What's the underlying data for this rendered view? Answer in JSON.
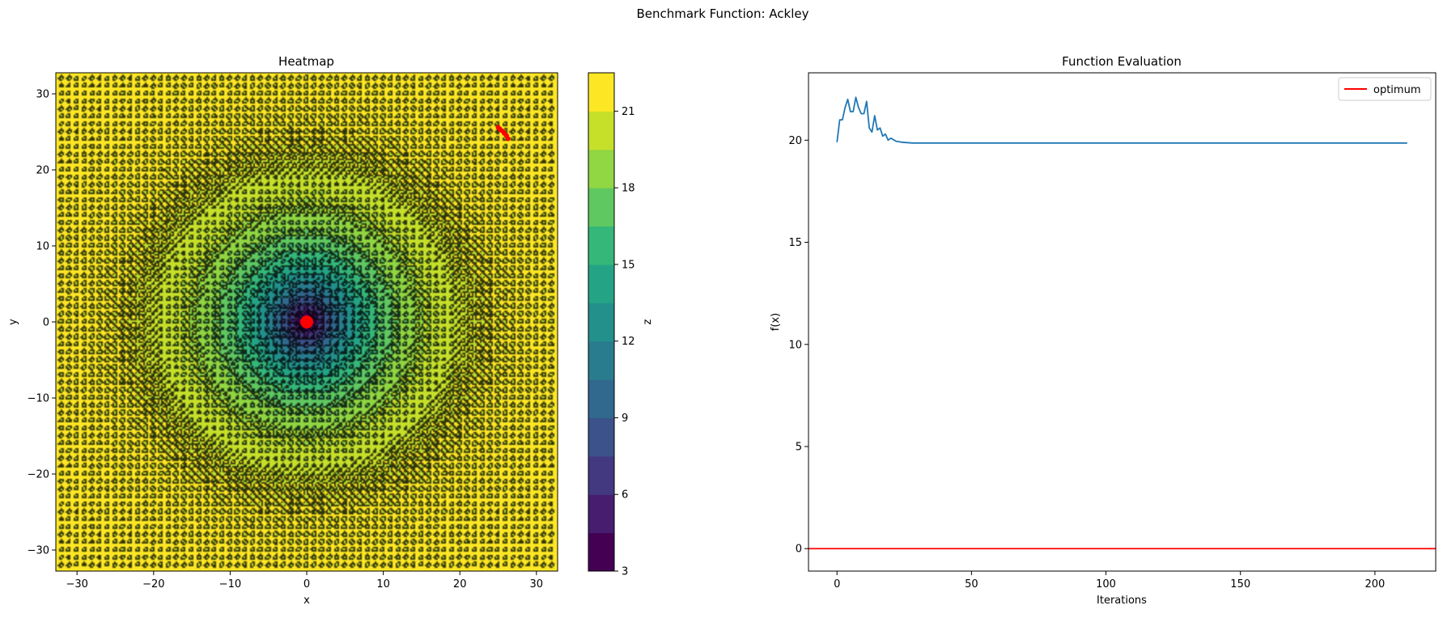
{
  "suptitle": "Benchmark Function: Ackley",
  "chart_data": [
    {
      "type": "heatmap",
      "title": "Heatmap",
      "xlabel": "x",
      "ylabel": "y",
      "xlim": [
        -32.768,
        32.768
      ],
      "ylim": [
        -32.768,
        32.768
      ],
      "xticks": [
        -30,
        -20,
        -10,
        0,
        10,
        20,
        30
      ],
      "yticks": [
        -30,
        -20,
        -10,
        0,
        10,
        20,
        30
      ],
      "function": "ackley",
      "levels": [
        3,
        4.5,
        6,
        7.5,
        9,
        10.5,
        12,
        13.5,
        15,
        16.5,
        18,
        19.5,
        21,
        22.5
      ],
      "colorbar": {
        "label": "z",
        "ticks": [
          3,
          6,
          9,
          12,
          15,
          18,
          21
        ],
        "range": [
          3,
          22.5
        ]
      },
      "optimum_marker": {
        "x": 0,
        "y": 0,
        "color": "#ff0000"
      },
      "search_path": {
        "color": "#ff0000",
        "points": [
          [
            25.0,
            25.6
          ],
          [
            25.4,
            25.2
          ],
          [
            25.8,
            24.8
          ],
          [
            26.1,
            24.5
          ],
          [
            26.3,
            24.1
          ],
          [
            25.7,
            25.0
          ],
          [
            25.2,
            25.4
          ]
        ]
      }
    },
    {
      "type": "line",
      "title": "Function Evaluation",
      "xlabel": "Iterations",
      "ylabel": "f(x)",
      "xlim": [
        -10.6,
        222.6
      ],
      "ylim": [
        -1.1,
        23.3
      ],
      "xticks": [
        0,
        50,
        100,
        150,
        200
      ],
      "yticks": [
        0,
        5,
        10,
        15,
        20
      ],
      "series": [
        {
          "name": "",
          "color": "#1f77b4",
          "x": [
            0,
            1,
            2,
            3,
            4,
            5,
            6,
            7,
            8,
            9,
            10,
            11,
            12,
            13,
            14,
            15,
            16,
            17,
            18,
            19,
            20,
            22,
            24,
            26,
            28,
            30,
            212
          ],
          "y": [
            19.9,
            21.0,
            21.0,
            21.6,
            22.0,
            21.4,
            21.4,
            22.1,
            21.6,
            21.3,
            21.3,
            21.9,
            20.6,
            20.4,
            21.2,
            20.5,
            20.6,
            20.2,
            20.3,
            20.0,
            20.1,
            19.95,
            19.9,
            19.88,
            19.86,
            19.86,
            19.86
          ]
        },
        {
          "name": "optimum",
          "color": "#ff0000",
          "y_constant": 0
        }
      ],
      "legend": {
        "placement": "top-right",
        "entries": [
          "optimum"
        ]
      }
    }
  ]
}
